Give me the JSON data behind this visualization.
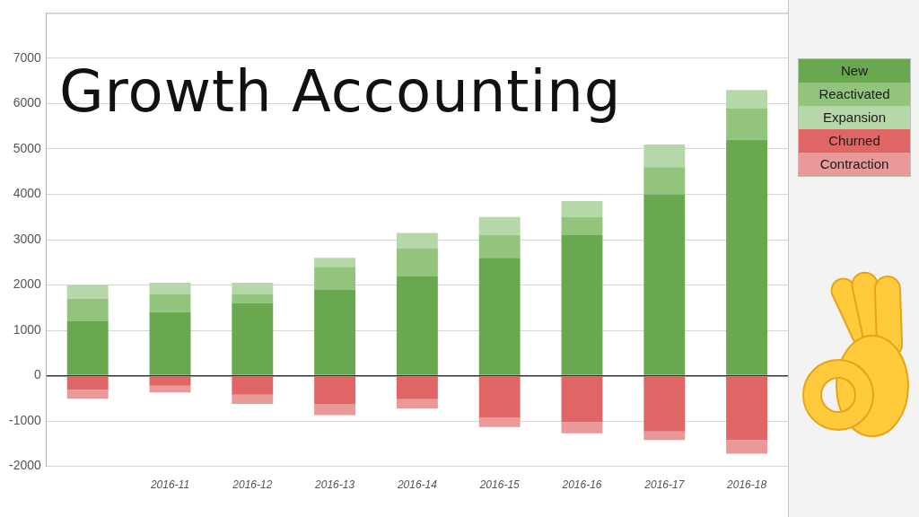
{
  "chart_data": {
    "type": "bar",
    "title": "Growth Accounting",
    "categories": [
      null,
      "2016-11",
      "2016-12",
      "2016-13",
      "2016-14",
      "2016-15",
      "2016-16",
      "2016-17",
      "2016-18"
    ],
    "series": [
      {
        "name": "New",
        "color": "#6aa84f",
        "values": [
          1200,
          1400,
          1600,
          1900,
          2200,
          2600,
          3100,
          4000,
          5200
        ]
      },
      {
        "name": "Reactivated",
        "color": "#93c47d",
        "values": [
          500,
          400,
          200,
          500,
          600,
          500,
          400,
          600,
          700
        ]
      },
      {
        "name": "Expansion",
        "color": "#b6d7a8",
        "values": [
          300,
          250,
          250,
          200,
          350,
          400,
          350,
          500,
          400
        ]
      },
      {
        "name": "Churned",
        "color": "#e06666",
        "values": [
          -310,
          -220,
          -420,
          -630,
          -520,
          -930,
          -1030,
          -1230,
          -1420
        ]
      },
      {
        "name": "Contraction",
        "color": "#ea9999",
        "values": [
          -200,
          -150,
          -200,
          -240,
          -200,
          -200,
          -240,
          -190,
          -300
        ]
      }
    ],
    "stacked": true,
    "ylim": [
      -2000,
      8000
    ],
    "yticks": [
      -2000,
      -1000,
      0,
      1000,
      2000,
      3000,
      4000,
      5000,
      6000,
      7000
    ],
    "grid": "y",
    "legend": "top right"
  }
}
